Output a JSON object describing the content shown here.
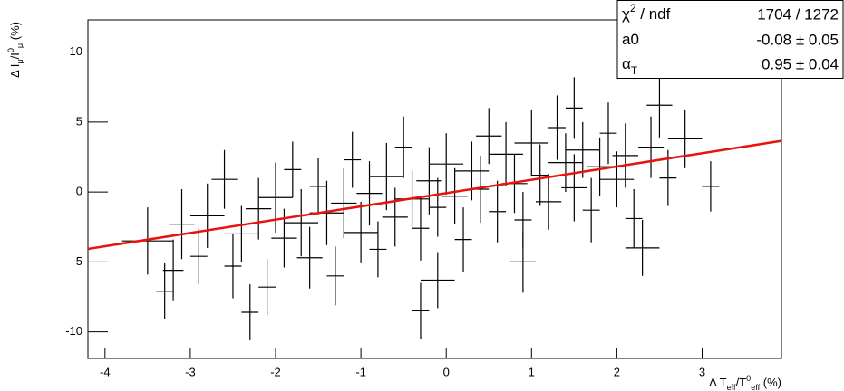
{
  "chart_data": {
    "type": "scatter",
    "x_title": [
      {
        "text": "Δ T"
      },
      {
        "text": "eff",
        "shift": "sub"
      },
      {
        "text": "/T"
      },
      {
        "text": "0",
        "shift": "sup"
      },
      {
        "text": "eff",
        "shift": "sub"
      },
      {
        "text": " (%)"
      }
    ],
    "y_title": [
      {
        "text": "Δ I"
      },
      {
        "text": "μ",
        "shift": "sub"
      },
      {
        "text": "/I"
      },
      {
        "text": "0",
        "shift": "sup"
      },
      {
        "text": "μ",
        "shift": "sub"
      },
      {
        "text": " (%)"
      }
    ],
    "xlim": [
      -4.2,
      3.93
    ],
    "ylim": [
      -11.9,
      12.3
    ],
    "xticks": [
      -4,
      -3,
      -2,
      -1,
      0,
      1,
      2,
      3
    ],
    "yticks": [
      -10,
      -5,
      0,
      5,
      10
    ],
    "series": [
      {
        "color": "#000000",
        "x": [
          -3.3,
          -3.2,
          -3.1,
          -2.9,
          -2.8,
          -3.5,
          -2.6,
          -2.5,
          -2.4,
          -2.2,
          -2.1,
          -2.0,
          -1.9,
          -1.8,
          -1.7,
          -1.6,
          -1.5,
          -1.4,
          -1.3,
          -1.2,
          -1.1,
          -1.0,
          -0.9,
          -0.8,
          -0.7,
          -0.6,
          -0.5,
          -0.4,
          -0.3,
          -0.3,
          -0.2,
          -0.1,
          0.0,
          0.1,
          0.2,
          0.3,
          0.4,
          0.5,
          0.6,
          0.7,
          0.8,
          0.9,
          1.0,
          1.1,
          1.2,
          1.3,
          1.4,
          1.5,
          1.5,
          1.6,
          1.7,
          1.8,
          1.9,
          2.0,
          2.1,
          2.2,
          2.3,
          2.4,
          2.6,
          2.8,
          3.1,
          2.5,
          -0.1,
          0.9,
          -2.3
        ],
        "values": [
          -7.1,
          -5.6,
          -2.3,
          -4.6,
          -1.7,
          -3.5,
          0.9,
          -5.3,
          -3.0,
          -1.2,
          -6.8,
          -0.4,
          -3.3,
          1.6,
          -2.2,
          -4.7,
          0.4,
          -1.5,
          -6.0,
          -0.8,
          2.3,
          -2.9,
          -0.1,
          -4.1,
          1.1,
          -1.8,
          3.2,
          -0.5,
          -2.6,
          -8.5,
          0.8,
          -1.1,
          2.0,
          -0.3,
          -3.4,
          1.5,
          0.2,
          4.0,
          -1.4,
          2.7,
          0.6,
          -2.0,
          3.5,
          1.2,
          -0.7,
          4.6,
          2.1,
          0.3,
          6.0,
          3.0,
          -1.3,
          1.8,
          4.2,
          0.9,
          2.6,
          -1.9,
          -4.0,
          3.2,
          1.0,
          3.8,
          0.4,
          6.2,
          -6.3,
          -5.0,
          -8.6
        ],
        "xerr": [
          0.1,
          0.12,
          0.15,
          0.1,
          0.2,
          0.3,
          0.15,
          0.1,
          0.2,
          0.15,
          0.1,
          0.2,
          0.15,
          0.1,
          0.2,
          0.15,
          0.1,
          0.2,
          0.1,
          0.15,
          0.1,
          0.2,
          0.15,
          0.1,
          0.2,
          0.15,
          0.1,
          0.2,
          0.1,
          0.1,
          0.15,
          0.1,
          0.2,
          0.15,
          0.1,
          0.2,
          0.1,
          0.15,
          0.1,
          0.2,
          0.15,
          0.1,
          0.2,
          0.1,
          0.15,
          0.1,
          0.2,
          0.15,
          0.1,
          0.2,
          0.1,
          0.15,
          0.1,
          0.2,
          0.15,
          0.1,
          0.2,
          0.15,
          0.1,
          0.2,
          0.1,
          0.15,
          0.2,
          0.15,
          0.1
        ],
        "yerr": [
          2.0,
          2.2,
          2.5,
          2.0,
          2.3,
          2.4,
          2.1,
          2.3,
          2.0,
          2.2,
          2.0,
          2.5,
          2.1,
          2.0,
          2.4,
          2.2,
          2.0,
          2.3,
          2.1,
          2.5,
          2.0,
          2.2,
          2.3,
          2.0,
          2.4,
          2.1,
          2.2,
          2.0,
          2.3,
          2.0,
          2.4,
          2.1,
          2.2,
          2.0,
          2.3,
          2.1,
          2.4,
          2.0,
          2.2,
          2.3,
          2.1,
          2.0,
          2.4,
          2.2,
          2.0,
          2.3,
          2.1,
          2.4,
          2.2,
          2.0,
          2.3,
          2.1,
          2.2,
          2.0,
          2.3,
          2.1,
          2.0,
          2.2,
          2.0,
          2.1,
          1.8,
          2.3,
          2.0,
          2.2,
          2.0
        ]
      }
    ],
    "fit": {
      "a0": -0.08,
      "alpha_T": 0.95,
      "color": "#e8120e"
    },
    "stats": [
      {
        "label": [
          {
            "text": "χ"
          },
          {
            "text": "2",
            "shift": "sup"
          },
          {
            "text": " / ndf"
          }
        ],
        "value": "1704 / 1272"
      },
      {
        "label": [
          {
            "text": "a0"
          }
        ],
        "value": "-0.08 ±  0.05"
      },
      {
        "label": [
          {
            "text": "α"
          },
          {
            "text": "T",
            "shift": "sub"
          }
        ],
        "value": "0.95 ±  0.04"
      }
    ]
  }
}
